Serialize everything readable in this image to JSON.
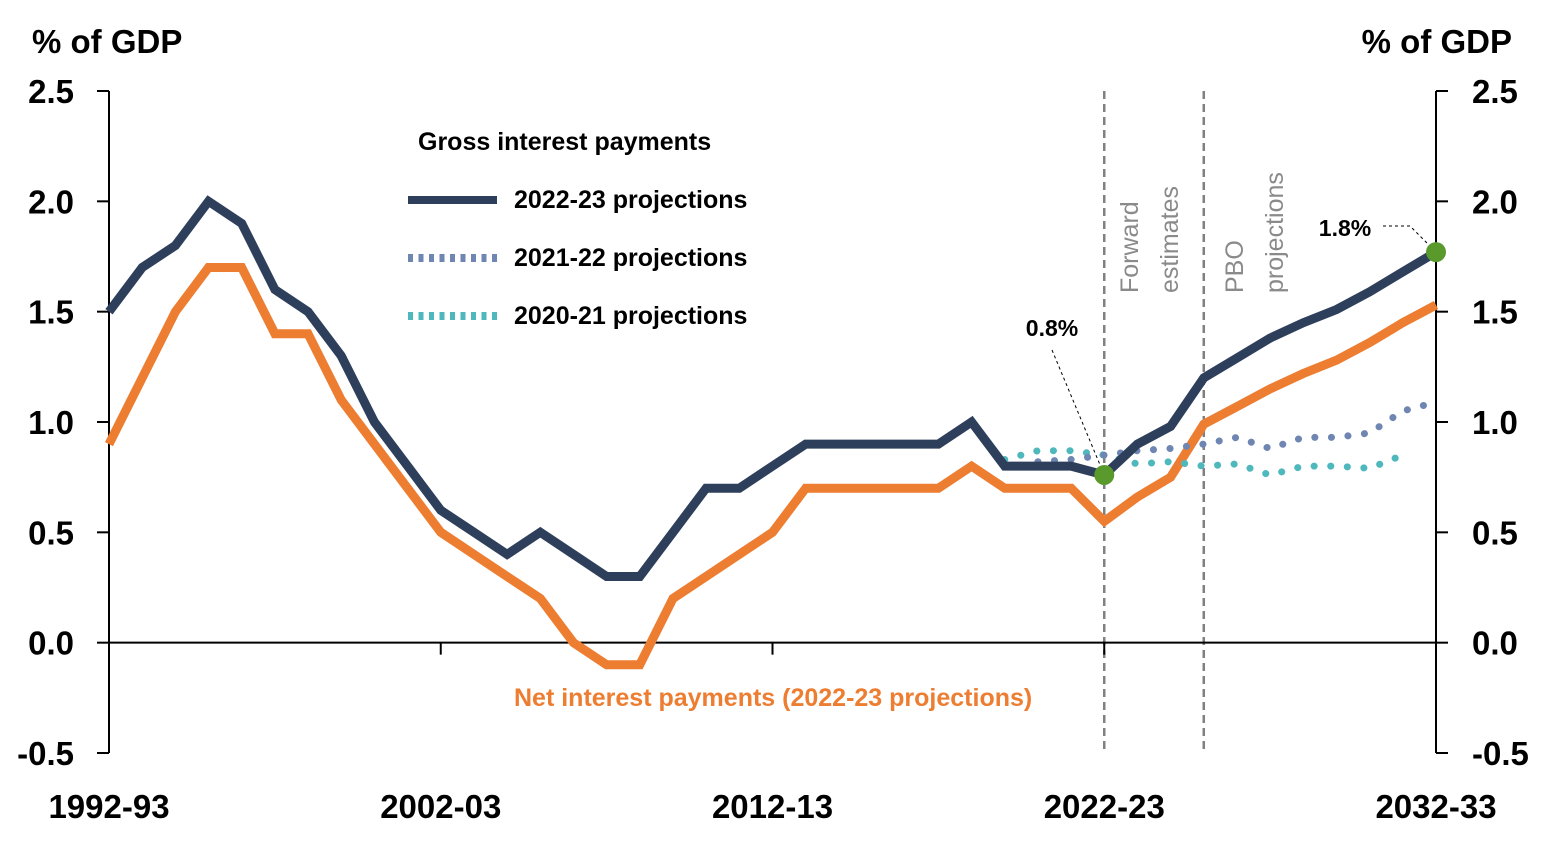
{
  "chart_data": {
    "type": "line",
    "y_unit_left": "% of GDP",
    "y_unit_right": "% of GDP",
    "ylim": [
      -0.5,
      2.5
    ],
    "y_ticks": [
      "2.5",
      "2.0",
      "1.5",
      "1.0",
      "0.5",
      "0.0",
      "-0.5"
    ],
    "x_start_year": 1992,
    "x_end_year": 2032,
    "x_ticks": [
      {
        "year": 1992,
        "label": "1992-93"
      },
      {
        "year": 2002,
        "label": "2002-03"
      },
      {
        "year": 2012,
        "label": "2012-13"
      },
      {
        "year": 2022,
        "label": "2022-23"
      },
      {
        "year": 2032,
        "label": "2032-33"
      }
    ],
    "grid": false,
    "legend": {
      "title": "Gross interest payments",
      "placement": "top-center"
    },
    "period_labels": {
      "forward_estimates": [
        "Forward",
        "estimates"
      ],
      "pbo_projections": [
        "PBO",
        "projections"
      ]
    },
    "period_markers": [
      2022,
      2025
    ],
    "series": [
      {
        "key": "gross_2022",
        "name": "2022-23 projections",
        "color": "#2e3f5c",
        "style": "solid",
        "start_year": 1992,
        "values": [
          1.5,
          1.7,
          1.8,
          2.0,
          1.9,
          1.6,
          1.5,
          1.3,
          1.0,
          0.8,
          0.6,
          0.5,
          0.4,
          0.5,
          0.4,
          0.3,
          0.3,
          0.5,
          0.7,
          0.7,
          0.8,
          0.9,
          0.9,
          0.9,
          0.9,
          0.9,
          1.0,
          0.8,
          0.8,
          0.8,
          0.76,
          0.9,
          0.98,
          1.2,
          1.29,
          1.38,
          1.45,
          1.51,
          1.59,
          1.68,
          1.77
        ]
      },
      {
        "key": "gross_2021",
        "name": "2021-22 projections",
        "color": "#6f86b2",
        "style": "dotted",
        "start_year": 2020,
        "values": [
          0.82,
          0.83,
          0.85,
          0.87,
          0.88,
          0.9,
          0.93,
          0.88,
          0.93,
          0.93,
          0.95,
          1.05,
          1.09
        ]
      },
      {
        "key": "gross_2020",
        "name": "2020-21 projections",
        "color": "#4fb8bd",
        "style": "dotted",
        "start_year": 2019,
        "values": [
          0.83,
          0.87,
          0.87,
          0.85,
          0.81,
          0.82,
          0.8,
          0.81,
          0.76,
          0.8,
          0.8,
          0.79,
          0.85
        ]
      },
      {
        "key": "net_2022",
        "name": "Net interest payments (2022-23 projections)",
        "color": "#ed7d31",
        "style": "solid",
        "start_year": 1992,
        "values": [
          0.9,
          1.2,
          1.5,
          1.7,
          1.7,
          1.4,
          1.4,
          1.1,
          0.9,
          0.7,
          0.5,
          0.4,
          0.3,
          0.2,
          0.0,
          -0.1,
          -0.1,
          0.2,
          0.3,
          0.4,
          0.5,
          0.7,
          0.7,
          0.7,
          0.7,
          0.7,
          0.8,
          0.7,
          0.7,
          0.7,
          0.55,
          0.66,
          0.75,
          0.99,
          1.07,
          1.15,
          1.22,
          1.28,
          1.36,
          1.45,
          1.53
        ]
      }
    ],
    "annotations": [
      {
        "label": "0.8%",
        "year": 2022,
        "value": 0.76
      },
      {
        "label": "1.8%",
        "year": 2032,
        "value": 1.77
      }
    ],
    "highlight_color": "#5a9a2c"
  }
}
